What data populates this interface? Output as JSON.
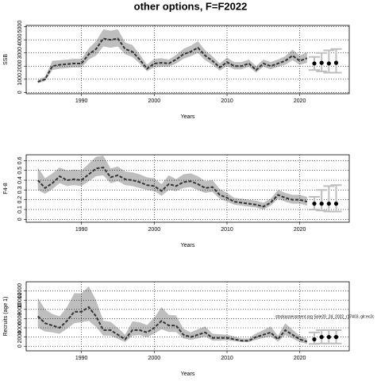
{
  "title": "other options, F=F2022",
  "chart_data": [
    {
      "type": "line",
      "xlabel": "Years",
      "ylabel": "SSB",
      "x": [
        1984,
        1985,
        1986,
        1987,
        1988,
        1989,
        1990,
        1991,
        1992,
        1993,
        1994,
        1995,
        1996,
        1997,
        1998,
        1999,
        2000,
        2001,
        2002,
        2003,
        2004,
        2005,
        2006,
        2007,
        2008,
        2009,
        2010,
        2011,
        2012,
        2013,
        2014,
        2015,
        2016,
        2017,
        2018,
        2019,
        2020,
        2021
      ],
      "values": [
        800,
        1000,
        2000,
        2100,
        2150,
        2200,
        2200,
        2900,
        3300,
        4100,
        4000,
        4100,
        3300,
        3100,
        2500,
        1800,
        2200,
        2250,
        2200,
        2500,
        2900,
        3100,
        3400,
        2800,
        2400,
        1900,
        2300,
        2000,
        2000,
        2200,
        1700,
        2200,
        2000,
        2200,
        2400,
        2800,
        2400,
        2600
      ],
      "lower": [
        700,
        850,
        1700,
        1800,
        1850,
        1900,
        1900,
        2500,
        2800,
        3500,
        3400,
        3500,
        2900,
        2700,
        2200,
        1600,
        1900,
        1950,
        1950,
        2200,
        2550,
        2750,
        3000,
        2450,
        2100,
        1650,
        2000,
        1750,
        1750,
        1950,
        1500,
        1950,
        1750,
        1950,
        2100,
        2450,
        2100,
        2250
      ],
      "upper": [
        950,
        1200,
        2400,
        2450,
        2500,
        2550,
        2550,
        3350,
        3900,
        4800,
        4700,
        4800,
        3800,
        3600,
        2900,
        2100,
        2550,
        2600,
        2500,
        2850,
        3300,
        3550,
        3900,
        3200,
        2750,
        2200,
        2650,
        2300,
        2300,
        2500,
        2000,
        2500,
        2300,
        2500,
        2750,
        3250,
        2800,
        3050
      ],
      "projection": {
        "x": [
          2022,
          2023,
          2024,
          2025
        ],
        "values": [
          2200,
          2250,
          2200,
          2250
        ],
        "lower": [
          1700,
          1600,
          1500,
          1500
        ],
        "upper": [
          2700,
          3000,
          3200,
          3300
        ]
      },
      "band_color": "#bebebe",
      "line_color": "#333333",
      "xlim": [
        1982.4,
        2026.8
      ],
      "xticks": [
        1990,
        2000,
        2010,
        2020
      ],
      "ylim": [
        -100,
        5100
      ],
      "yticks": [
        0,
        1000,
        2000,
        3000,
        4000,
        5000
      ],
      "grid": true
    },
    {
      "type": "line",
      "xlabel": "Years",
      "ylabel": "F4-8",
      "x": [
        1984,
        1985,
        1986,
        1987,
        1988,
        1989,
        1990,
        1991,
        1992,
        1993,
        1994,
        1995,
        1996,
        1997,
        1998,
        1999,
        2000,
        2001,
        2002,
        2003,
        2004,
        2005,
        2006,
        2007,
        2008,
        2009,
        2010,
        2011,
        2012,
        2013,
        2014,
        2015,
        2016,
        2017,
        2018,
        2019,
        2020,
        2021
      ],
      "values": [
        0.4,
        0.32,
        0.37,
        0.44,
        0.4,
        0.41,
        0.4,
        0.46,
        0.52,
        0.53,
        0.43,
        0.45,
        0.41,
        0.4,
        0.38,
        0.35,
        0.34,
        0.29,
        0.36,
        0.34,
        0.38,
        0.39,
        0.36,
        0.32,
        0.33,
        0.25,
        0.22,
        0.18,
        0.17,
        0.16,
        0.15,
        0.13,
        0.17,
        0.25,
        0.22,
        0.2,
        0.2,
        0.18
      ],
      "lower": [
        0.3,
        0.26,
        0.31,
        0.37,
        0.34,
        0.35,
        0.34,
        0.39,
        0.44,
        0.45,
        0.37,
        0.39,
        0.35,
        0.34,
        0.32,
        0.3,
        0.29,
        0.24,
        0.3,
        0.29,
        0.32,
        0.33,
        0.3,
        0.27,
        0.28,
        0.21,
        0.18,
        0.15,
        0.14,
        0.13,
        0.12,
        0.1,
        0.14,
        0.21,
        0.18,
        0.16,
        0.16,
        0.14
      ],
      "upper": [
        0.53,
        0.42,
        0.47,
        0.53,
        0.5,
        0.51,
        0.5,
        0.57,
        0.64,
        0.65,
        0.52,
        0.54,
        0.49,
        0.48,
        0.46,
        0.43,
        0.42,
        0.36,
        0.45,
        0.41,
        0.46,
        0.47,
        0.44,
        0.39,
        0.4,
        0.31,
        0.27,
        0.22,
        0.21,
        0.2,
        0.19,
        0.17,
        0.21,
        0.3,
        0.27,
        0.25,
        0.25,
        0.23
      ],
      "projection": {
        "x": [
          2022,
          2023,
          2024,
          2025
        ],
        "values": [
          0.16,
          0.16,
          0.16,
          0.16
        ],
        "lower": [
          0.1,
          0.09,
          0.08,
          0.08
        ],
        "upper": [
          0.23,
          0.3,
          0.34,
          0.35
        ]
      },
      "band_color": "#bebebe",
      "line_color": "#333333",
      "xlim": [
        1982.4,
        2026.8
      ],
      "xticks": [
        1990,
        2000,
        2010,
        2020
      ],
      "ylim": [
        -0.03,
        0.66
      ],
      "yticks": [
        0,
        0.1,
        0.2,
        0.3,
        0.4,
        0.5,
        0.6
      ],
      "grid": true
    },
    {
      "type": "line",
      "xlabel": "Years",
      "ylabel": "Recruits (age 1)",
      "annotation": "stockassessment.org Sole20_24_2022_r17403, git:ec2c",
      "x": [
        1984,
        1985,
        1986,
        1987,
        1988,
        1989,
        1990,
        1991,
        1992,
        1993,
        1994,
        1995,
        1996,
        1997,
        1998,
        1999,
        2000,
        2001,
        2002,
        2003,
        2004,
        2005,
        2006,
        2007,
        2008,
        2009,
        2010,
        2011,
        2012,
        2013,
        2014,
        2015,
        2016,
        2017,
        2018,
        2019,
        2020,
        2021
      ],
      "values": [
        6500,
        5000,
        4500,
        4000,
        5500,
        7500,
        7500,
        8500,
        6500,
        3500,
        3500,
        2500,
        1500,
        3500,
        3500,
        3000,
        4000,
        5500,
        4500,
        4500,
        2500,
        2000,
        2500,
        3000,
        1800,
        1800,
        1800,
        1500,
        1200,
        1200,
        2000,
        2500,
        3000,
        1500,
        3500,
        2500,
        1500,
        1000
      ],
      "lower": [
        4000,
        3200,
        3000,
        2700,
        3800,
        5000,
        5200,
        5500,
        4200,
        2300,
        2300,
        1600,
        900,
        2300,
        2400,
        2000,
        2700,
        3700,
        3100,
        3100,
        1700,
        1400,
        1700,
        2100,
        1200,
        1200,
        1300,
        1100,
        900,
        900,
        1400,
        1800,
        2100,
        1000,
        2400,
        1700,
        900,
        500
      ],
      "upper": [
        10500,
        8000,
        7000,
        6500,
        8500,
        11500,
        11500,
        13000,
        10000,
        5500,
        5300,
        4000,
        2500,
        5400,
        5200,
        4600,
        6200,
        8500,
        6800,
        6700,
        3800,
        3000,
        3700,
        4300,
        2700,
        2600,
        2500,
        2100,
        1700,
        1700,
        2800,
        3500,
        4300,
        2300,
        5000,
        3600,
        2300,
        1600
      ],
      "projection": {
        "x": [
          2022,
          2023,
          2024,
          2025
        ],
        "values": [
          1500,
          2000,
          2000,
          2000
        ],
        "lower": [
          500,
          600,
          600,
          600
        ],
        "upper": [
          3000,
          3500,
          3500,
          3500
        ]
      },
      "band_color": "#bebebe",
      "line_color": "#333333",
      "xlim": [
        1982.4,
        2026.8
      ],
      "xticks": [
        1990,
        2000,
        2010,
        2020
      ],
      "ylim": [
        -1000,
        14000
      ],
      "yticks": [
        0,
        2000,
        4000,
        6000,
        8000,
        10000,
        12000
      ],
      "grid": true
    }
  ]
}
